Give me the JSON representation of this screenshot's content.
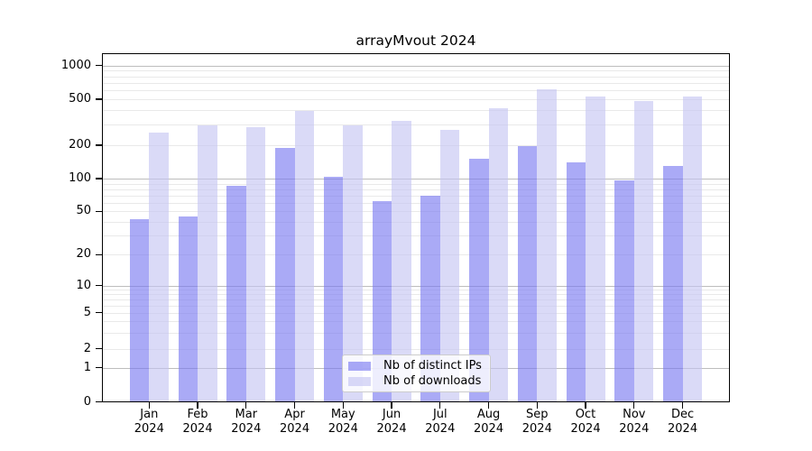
{
  "title": "arrayMvout 2024",
  "chart_data": {
    "type": "bar",
    "title": "arrayMvout 2024",
    "categories": [
      "Jan 2024",
      "Feb 2024",
      "Mar 2024",
      "Apr 2024",
      "May 2024",
      "Jun 2024",
      "Jul 2024",
      "Aug 2024",
      "Sep 2024",
      "Oct 2024",
      "Nov 2024",
      "Dec 2024"
    ],
    "series": [
      {
        "name": "Nb of distinct IPs",
        "color": "rgba(118,118,240,0.62)",
        "values": [
          42,
          45,
          86,
          190,
          104,
          62,
          70,
          150,
          195,
          140,
          96,
          129
        ]
      },
      {
        "name": "Nb of downloads",
        "color": "rgba(196,196,242,0.62)",
        "values": [
          255,
          295,
          288,
          395,
          295,
          325,
          270,
          420,
          610,
          525,
          485,
          530
        ]
      }
    ],
    "yscale": "log-like (log above 1, compressed linear segment 0-1)",
    "ylim": [
      0,
      1270
    ],
    "y_major_ticks": [
      1000,
      500,
      200,
      100,
      50,
      20,
      10,
      5,
      2,
      1,
      0
    ],
    "y_minor_gridlines": [
      2,
      3,
      4,
      5,
      6,
      7,
      8,
      9,
      20,
      30,
      40,
      50,
      60,
      70,
      80,
      90,
      200,
      300,
      400,
      500,
      600,
      700,
      800,
      900
    ],
    "y_major_gridlines": [
      1,
      10,
      100,
      1000
    ],
    "grid": "horizontal, major and minor",
    "legend_position": "lower center inside plot",
    "xlabel": "",
    "ylabel": ""
  },
  "axes": {
    "y_tick_labels": [
      "1000",
      "500",
      "200",
      "100",
      "50",
      "20",
      "10",
      "5",
      "2",
      "1",
      "0"
    ]
  },
  "legend": {
    "items": [
      {
        "label": "Nb of distinct IPs"
      },
      {
        "label": "Nb of downloads"
      }
    ]
  },
  "colors": {
    "bar_distinct_ips": "rgba(118,118,240,0.62)",
    "bar_downloads": "rgba(196,196,242,0.62)",
    "grid_major": "#bdbdbd",
    "grid_minor": "#e9e9e9",
    "axis": "#000000",
    "background": "#ffffff"
  }
}
